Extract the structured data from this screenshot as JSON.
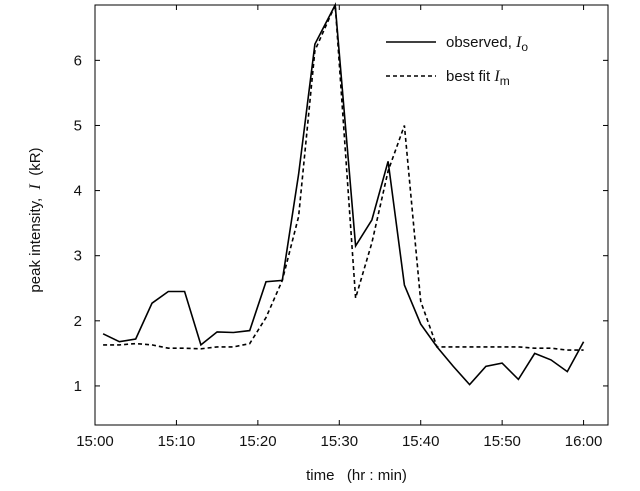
{
  "chart_data": {
    "type": "line",
    "xlabel": "time   (hr : min)",
    "ylabel": "peak intensity,  I  (kR)",
    "ylabel_parts": {
      "text": "peak intensity,",
      "symbol": "I",
      "unit": "(kR)"
    },
    "xlim": [
      "15:00",
      "16:03"
    ],
    "ylim": [
      0.4,
      6.85
    ],
    "x_ticks": [
      "15:00",
      "15:10",
      "15:20",
      "15:30",
      "15:40",
      "15:50",
      "16:00"
    ],
    "y_ticks": [
      1,
      2,
      3,
      4,
      5,
      6
    ],
    "grid": false,
    "legend": "top-right",
    "series": [
      {
        "name": "observed, Io",
        "legend_text": "observed,",
        "legend_symbol": "I",
        "legend_sub": "o",
        "style": "solid",
        "color": "#000000",
        "points": [
          [
            "15:01",
            1.8
          ],
          [
            "15:03",
            1.68
          ],
          [
            "15:05",
            1.72
          ],
          [
            "15:07",
            2.27
          ],
          [
            "15:09",
            2.45
          ],
          [
            "15:11",
            2.45
          ],
          [
            "15:13",
            1.63
          ],
          [
            "15:15",
            1.83
          ],
          [
            "15:17",
            1.82
          ],
          [
            "15:19",
            1.85
          ],
          [
            "15:21",
            2.6
          ],
          [
            "15:23",
            2.62
          ],
          [
            "15:25",
            4.25
          ],
          [
            "15:27",
            6.25
          ],
          [
            "15:29.5",
            6.85
          ],
          [
            "15:32",
            3.15
          ],
          [
            "15:34",
            3.55
          ],
          [
            "15:36",
            4.45
          ],
          [
            "15:38",
            2.55
          ],
          [
            "15:40",
            1.95
          ],
          [
            "15:42",
            1.6
          ],
          [
            "15:44",
            1.3
          ],
          [
            "15:46",
            1.02
          ],
          [
            "15:48",
            1.3
          ],
          [
            "15:50",
            1.35
          ],
          [
            "15:52",
            1.1
          ],
          [
            "15:54",
            1.5
          ],
          [
            "15:56",
            1.4
          ],
          [
            "15:58",
            1.22
          ],
          [
            "16:00",
            1.68
          ]
        ]
      },
      {
        "name": "best fit Im",
        "legend_text": "best fit",
        "legend_symbol": "I",
        "legend_sub": "m",
        "style": "dashed",
        "color": "#000000",
        "points": [
          [
            "15:01",
            1.63
          ],
          [
            "15:03",
            1.63
          ],
          [
            "15:05",
            1.65
          ],
          [
            "15:07",
            1.63
          ],
          [
            "15:09",
            1.58
          ],
          [
            "15:11",
            1.58
          ],
          [
            "15:13",
            1.57
          ],
          [
            "15:15",
            1.6
          ],
          [
            "15:17",
            1.6
          ],
          [
            "15:19",
            1.65
          ],
          [
            "15:21",
            2.05
          ],
          [
            "15:23",
            2.62
          ],
          [
            "15:25",
            3.6
          ],
          [
            "15:27",
            6.15
          ],
          [
            "15:29.5",
            6.85
          ],
          [
            "15:32",
            2.35
          ],
          [
            "15:34",
            3.2
          ],
          [
            "15:36",
            4.3
          ],
          [
            "15:38",
            5.0
          ],
          [
            "15:40",
            2.3
          ],
          [
            "15:42",
            1.6
          ],
          [
            "15:44",
            1.6
          ],
          [
            "15:46",
            1.6
          ],
          [
            "15:48",
            1.6
          ],
          [
            "15:50",
            1.6
          ],
          [
            "15:52",
            1.6
          ],
          [
            "15:54",
            1.58
          ],
          [
            "15:56",
            1.58
          ],
          [
            "15:58",
            1.55
          ],
          [
            "16:00",
            1.55
          ]
        ]
      }
    ]
  }
}
